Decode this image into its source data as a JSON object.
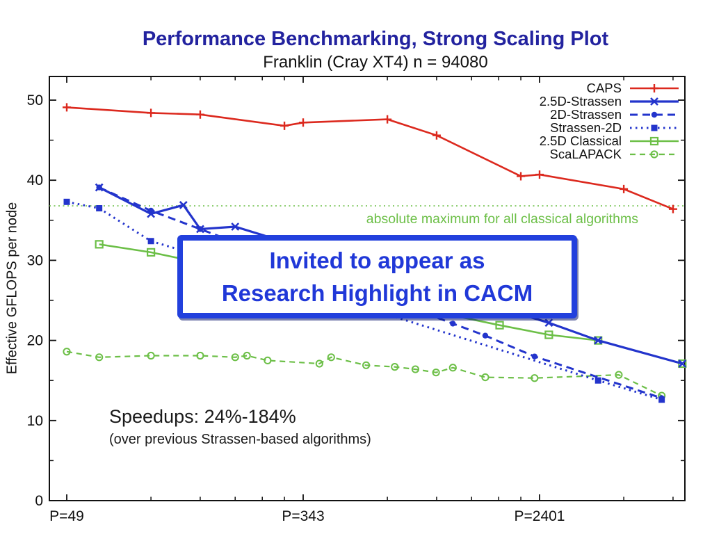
{
  "slide": {
    "title": "Performance Benchmarking, Strong Scaling Plot",
    "subtitle": "Franklin (Cray XT4) n = 94080",
    "callout": {
      "line1": "Invited to appear as",
      "line2": "Research Highlight in CACM"
    },
    "speedups": {
      "headline": "Speedups: 24%-184%",
      "subtext": "(over previous Strassen-based algorithms)"
    },
    "colors": {
      "title_text": "#23239f",
      "callout_border": "#2240dd",
      "callout_text": "#2038d8",
      "axis": "#111111",
      "red_series": "#dc291e",
      "blue_series": "#2334cc",
      "green_series": "#6cbf47"
    }
  },
  "chart_data": {
    "type": "line",
    "title": "Franklin (Cray XT4) n = 94080",
    "xlabel": "",
    "ylabel": "Effective GFLOPS per node",
    "x_axis": {
      "scale": "log",
      "log_base": 7,
      "tick_labels": [
        "P=49",
        "P=343",
        "P=2401"
      ],
      "major_ticks": [
        49,
        343,
        2401
      ],
      "minor_ticks": [
        98,
        147,
        196,
        245,
        294,
        686,
        1029,
        1372,
        1715,
        2058,
        4802,
        7203
      ],
      "range": [
        43,
        7900
      ]
    },
    "y_axis": {
      "label": "Effective GFLOPS per node",
      "major_ticks": [
        0,
        10,
        20,
        30,
        40,
        50
      ],
      "minor_ticks": [
        5,
        15,
        25,
        35,
        45
      ],
      "range": [
        0,
        53
      ]
    },
    "annotation": {
      "y": 36.8,
      "label": "absolute maximum for all classical algorithms",
      "color": "#6cbf47"
    },
    "legend": {
      "position": "top-right",
      "entries": [
        "CAPS",
        "2.5D-Strassen",
        "2D-Strassen",
        "Strassen-2D",
        "2.5D Classical",
        "ScaLAPACK"
      ]
    },
    "series": [
      {
        "name": "CAPS",
        "color": "#dc291e",
        "line": "solid",
        "marker": "plus",
        "points": [
          [
            49,
            49.1
          ],
          [
            98,
            48.4
          ],
          [
            147,
            48.2
          ],
          [
            294,
            46.8
          ],
          [
            343,
            47.2
          ],
          [
            686,
            47.6
          ],
          [
            1029,
            45.6
          ],
          [
            2058,
            40.5
          ],
          [
            2401,
            40.7
          ],
          [
            4802,
            38.9
          ],
          [
            7203,
            36.4
          ]
        ]
      },
      {
        "name": "2.5D-Strassen",
        "color": "#2334cc",
        "line": "solid",
        "marker": "cross",
        "points": [
          [
            64,
            39.1
          ],
          [
            98,
            35.8
          ],
          [
            128,
            36.9
          ],
          [
            147,
            33.9
          ],
          [
            196,
            34.2
          ],
          [
            2592,
            22.2
          ],
          [
            3888,
            20.0
          ],
          [
            7776,
            17.1
          ]
        ]
      },
      {
        "name": "2D-Strassen",
        "color": "#2334cc",
        "line": "dashed",
        "marker": "circle-filled",
        "points": [
          [
            64,
            39.1
          ],
          [
            98,
            36.2
          ],
          [
            147,
            33.9
          ],
          [
            1176,
            22.1
          ],
          [
            1536,
            20.6
          ],
          [
            2304,
            18.0
          ],
          [
            6561,
            12.8
          ]
        ]
      },
      {
        "name": "Strassen-2D",
        "color": "#2334cc",
        "line": "dotted",
        "marker": "square-filled",
        "points": [
          [
            49,
            37.3
          ],
          [
            64,
            36.5
          ],
          [
            98,
            32.4
          ],
          [
            128,
            31.2
          ],
          [
            3888,
            15.0
          ],
          [
            6561,
            12.6
          ]
        ]
      },
      {
        "name": "2.5D Classical",
        "color": "#6cbf47",
        "line": "solid",
        "marker": "square-open",
        "points": [
          [
            64,
            32.0
          ],
          [
            98,
            31.0
          ],
          [
            1728,
            21.9
          ],
          [
            2592,
            20.7
          ],
          [
            3888,
            20.0
          ],
          [
            7776,
            17.1
          ]
        ]
      },
      {
        "name": "ScaLAPACK",
        "color": "#6cbf47",
        "line": "dashed-short",
        "marker": "circle-open",
        "points": [
          [
            49,
            18.6
          ],
          [
            64,
            17.9
          ],
          [
            98,
            18.1
          ],
          [
            147,
            18.1
          ],
          [
            196,
            17.9
          ],
          [
            216,
            18.1
          ],
          [
            256,
            17.5
          ],
          [
            392,
            17.1
          ],
          [
            432,
            17.9
          ],
          [
            576,
            16.9
          ],
          [
            729,
            16.7
          ],
          [
            864,
            16.4
          ],
          [
            1024,
            16.0
          ],
          [
            1176,
            16.6
          ],
          [
            1536,
            15.4
          ],
          [
            2304,
            15.3
          ],
          [
            4608,
            15.7
          ],
          [
            6561,
            13.1
          ]
        ]
      }
    ]
  }
}
